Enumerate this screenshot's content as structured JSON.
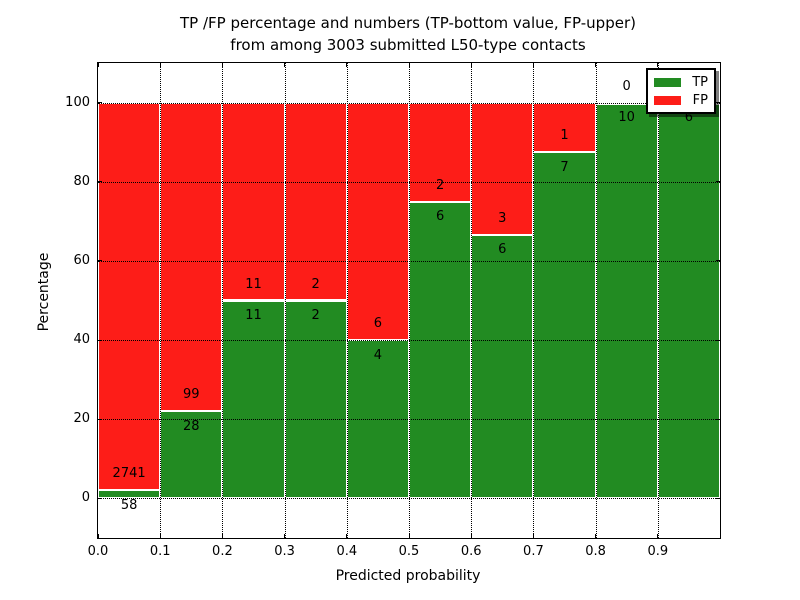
{
  "figure": {
    "title_line1": "TP /FP percentage and numbers (TP-bottom value, FP-upper)",
    "title_line2": "from among 3003 submitted L50-type contacts",
    "xlabel": "Predicted probability",
    "ylabel": "Percentage"
  },
  "chart_data": {
    "type": "bar",
    "stacked": true,
    "normalized": "each 0.1-wide bin scaled to 100%; TP segment on bottom, FP on top; raw counts shown as labels at the segment boundary (TP below, FP above)",
    "title": "TP /FP percentage and numbers (TP-bottom value, FP-upper) from among 3003 submitted L50-type contacts",
    "xlabel": "Predicted probability",
    "ylabel": "Percentage",
    "total_submitted_contacts": 3003,
    "bin_width": 0.1,
    "categories": [
      "0.0-0.1",
      "0.1-0.2",
      "0.2-0.3",
      "0.3-0.4",
      "0.4-0.5",
      "0.5-0.6",
      "0.6-0.7",
      "0.7-0.8",
      "0.8-0.9",
      "0.9-1.0"
    ],
    "series": [
      {
        "name": "TP",
        "color": "#228b22",
        "values": [
          58,
          28,
          11,
          2,
          4,
          6,
          6,
          7,
          10,
          6
        ]
      },
      {
        "name": "FP",
        "color": "#fd1d18",
        "values": [
          2741,
          99,
          11,
          2,
          6,
          2,
          3,
          1,
          0,
          0
        ]
      }
    ],
    "tp_percent_per_bin": [
      2.07,
      22.05,
      50,
      50,
      40,
      75,
      66.67,
      87.5,
      100,
      100
    ],
    "xlim": [
      0,
      1
    ],
    "ylim": [
      -10,
      110
    ],
    "xticks": [
      0,
      0.1,
      0.2,
      0.3,
      0.4,
      0.5,
      0.6,
      0.7,
      0.8,
      0.9
    ],
    "xtick_labels": [
      "0.0",
      "0.1",
      "0.2",
      "0.3",
      "0.4",
      "0.5",
      "0.6",
      "0.7",
      "0.8",
      "0.9"
    ],
    "yticks": [
      0,
      20,
      40,
      60,
      80,
      100
    ],
    "ytick_labels": [
      "0",
      "20",
      "40",
      "60",
      "80",
      "100"
    ],
    "grid": "dotted",
    "legend": {
      "position": "upper-right",
      "entries": [
        {
          "label": "TP",
          "color": "#228b22"
        },
        {
          "label": "FP",
          "color": "#fd1d18"
        }
      ]
    }
  }
}
